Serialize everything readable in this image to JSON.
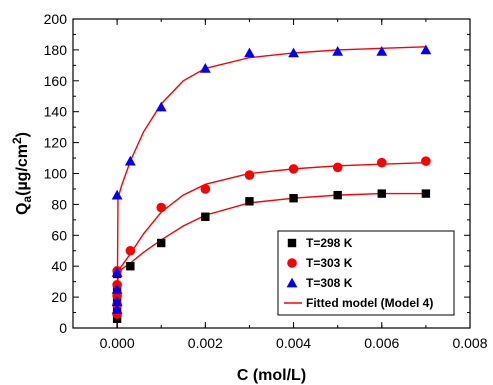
{
  "chart_data": {
    "type": "scatter",
    "title": "",
    "xlabel": "C (mol/L)",
    "ylabel_main": "Q",
    "ylabel_sub": "a",
    "ylabel_unit": "(µg/cm",
    "ylabel_sup": "2",
    "ylabel_close": ")",
    "xlim": [
      -0.001,
      0.008
    ],
    "ylim": [
      0,
      200
    ],
    "xticks": [
      0.0,
      0.002,
      0.004,
      0.006,
      0.008
    ],
    "xtick_labels": [
      "0.000",
      "0.002",
      "0.004",
      "0.006",
      "0.008"
    ],
    "yticks": [
      0,
      20,
      40,
      60,
      80,
      100,
      120,
      140,
      160,
      180,
      200
    ],
    "ytick_labels": [
      "0",
      "20",
      "40",
      "60",
      "80",
      "100",
      "120",
      "140",
      "160",
      "180",
      "200"
    ],
    "grid": false,
    "legend_position": "bottom-right",
    "series": [
      {
        "name": "T=298 K",
        "marker": "square",
        "color": "#000000",
        "x": [
          0.0,
          0.0,
          0.0,
          0.0,
          0.0,
          0.0003,
          0.001,
          0.002,
          0.003,
          0.004,
          0.005,
          0.006,
          0.007
        ],
        "y": [
          6,
          12,
          18,
          26,
          35,
          40,
          55,
          72,
          82,
          84,
          86,
          87,
          87
        ]
      },
      {
        "name": "T=303 K",
        "marker": "circle",
        "color": "#ff0000",
        "x": [
          0.0,
          0.0,
          0.0,
          0.0,
          0.0,
          0.0003,
          0.001,
          0.002,
          0.003,
          0.004,
          0.005,
          0.006,
          0.007
        ],
        "y": [
          9,
          15,
          21,
          28,
          37,
          50,
          78,
          90,
          99,
          103,
          104,
          107,
          108
        ]
      },
      {
        "name": "T=308 K",
        "marker": "triangle",
        "color": "#0000ff",
        "x": [
          0.0,
          0.0,
          0.0,
          0.0,
          0.0,
          0.0003,
          0.001,
          0.002,
          0.003,
          0.004,
          0.005,
          0.006,
          0.007
        ],
        "y": [
          12,
          17,
          25,
          36,
          86,
          108,
          143,
          168,
          178,
          178,
          179,
          179,
          180
        ]
      }
    ],
    "fit_lines": [
      {
        "name": "Fitted model (Model 4)",
        "color": "#ff0000",
        "curves": [
          {
            "x": [
              0.0,
              2e-05,
              0.0001,
              0.0003,
              0.0006,
              0.001,
              0.0015,
              0.002,
              0.003,
              0.004,
              0.005,
              0.006,
              0.007
            ],
            "y": [
              0,
              36,
              38,
              42,
              49,
              57,
              66,
              73,
              81,
              84,
              86,
              87,
              87
            ]
          },
          {
            "x": [
              0.0,
              2e-05,
              0.0001,
              0.0003,
              0.0006,
              0.001,
              0.0015,
              0.002,
              0.003,
              0.004,
              0.005,
              0.006,
              0.007
            ],
            "y": [
              0,
              37,
              40,
              48,
              61,
              75,
              86,
              93,
              100,
              103,
              105,
              106,
              107
            ]
          },
          {
            "x": [
              0.0,
              2e-05,
              0.0001,
              0.0003,
              0.0006,
              0.001,
              0.0015,
              0.002,
              0.003,
              0.004,
              0.005,
              0.006,
              0.007
            ],
            "y": [
              0,
              84,
              92,
              108,
              127,
              145,
              160,
              168,
              175,
              178,
              180,
              181,
              182
            ]
          }
        ]
      }
    ],
    "legend": [
      {
        "label": "T=298 K",
        "marker": "square",
        "color": "#000000"
      },
      {
        "label": "T=303 K",
        "marker": "circle",
        "color": "#ff0000"
      },
      {
        "label": "T=308 K",
        "marker": "triangle",
        "color": "#0000ff"
      },
      {
        "label": "Fitted model (Model 4)",
        "marker": "line",
        "color": "#ff0000"
      }
    ]
  }
}
